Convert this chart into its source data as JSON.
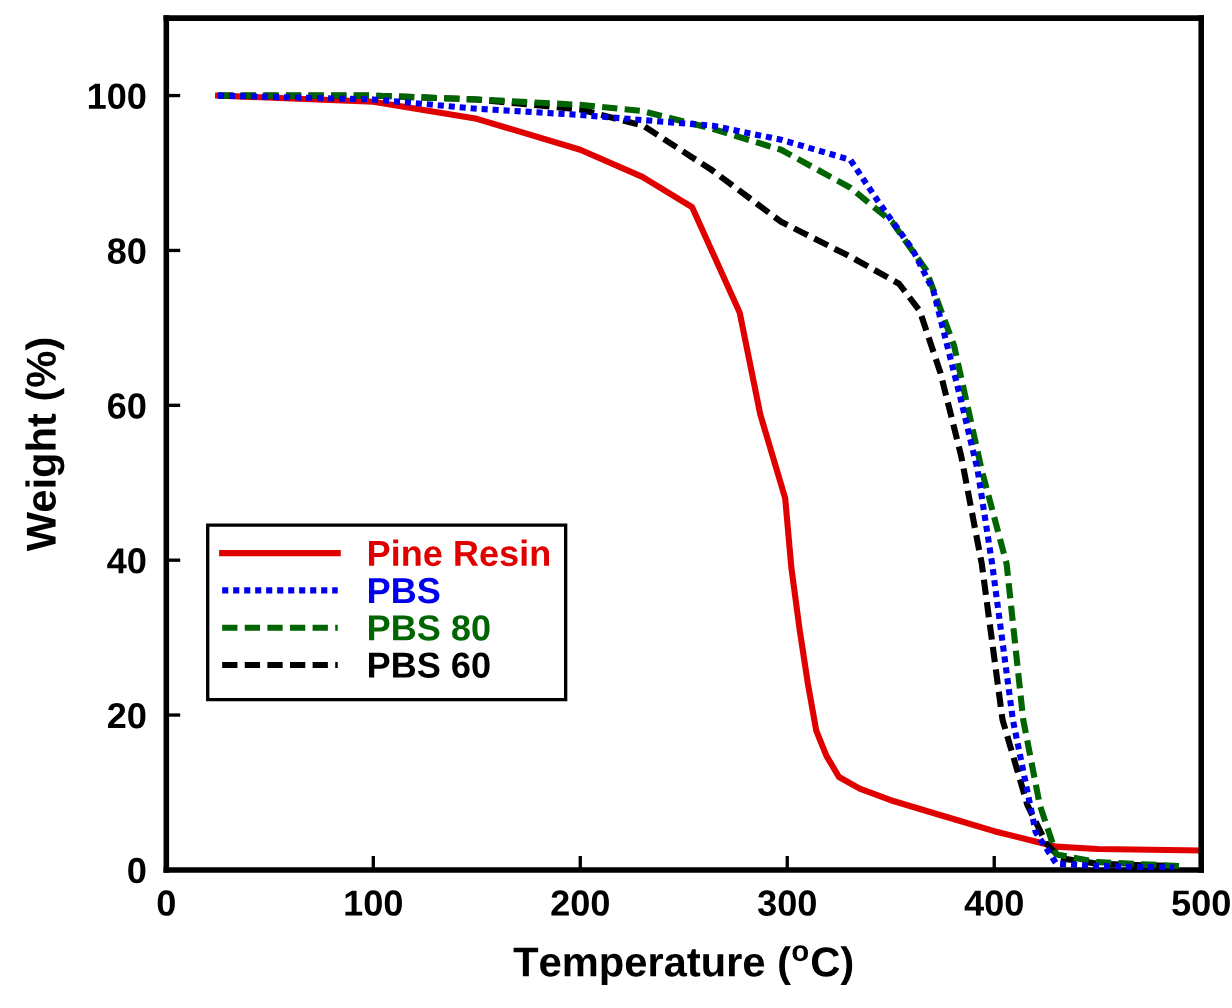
{
  "chart_data": {
    "type": "line",
    "xlabel": "Temperature ($^{o}$C)",
    "ylabel": "Weight (%)",
    "xlim": [
      0,
      500
    ],
    "xticks": [
      0,
      100,
      200,
      300,
      400,
      500
    ],
    "ylim": [
      0,
      110
    ],
    "yticks": [
      0,
      20,
      40,
      60,
      80,
      100
    ],
    "grid": false,
    "legend": "bottom left",
    "marker": "none",
    "series": [
      {
        "name": "Pine Resin",
        "color": "#e00000",
        "line_style": "solid",
        "x": [
          25,
          100,
          150,
          200,
          230,
          254,
          277,
          287,
          299,
          302,
          306,
          310,
          314,
          319,
          325,
          335,
          350,
          375,
          400,
          430,
          450,
          500
        ],
        "values": [
          100,
          99.2,
          97,
          93,
          89.5,
          85.6,
          72,
          58.8,
          48,
          39,
          31,
          24,
          18,
          14.7,
          12,
          10.5,
          9,
          7,
          5,
          3,
          2.7,
          2.5
        ]
      },
      {
        "name": "PBS",
        "color": "#0000ee",
        "line_style": "dotted",
        "x": [
          25,
          100,
          150,
          200,
          264,
          297,
          330.5,
          344,
          360.6,
          370.6,
          384,
          392,
          399,
          409,
          420,
          430,
          450,
          487
        ],
        "values": [
          100,
          99.5,
          98.3,
          97.5,
          96.1,
          94.3,
          91.7,
          86.3,
          80.1,
          74.8,
          60.6,
          51.6,
          39.5,
          19.4,
          4.9,
          0.8,
          0.5,
          0.3
        ]
      },
      {
        "name": "PBS 80",
        "color": "#006400",
        "line_style": "dashed",
        "x": [
          25,
          100,
          150,
          200,
          230,
          264,
          297,
          330.5,
          350.6,
          367,
          380.6,
          394,
          406,
          414,
          422,
          430,
          450,
          490
        ],
        "values": [
          100,
          100,
          99.5,
          98.8,
          98,
          95.7,
          93,
          88.1,
          83.7,
          77.5,
          67.7,
          51.6,
          39.5,
          19.4,
          8.4,
          2,
          1,
          0.5
        ]
      },
      {
        "name": "PBS 60",
        "color": "#000000",
        "line_style": "dashed",
        "x": [
          25,
          100,
          150,
          200,
          230.5,
          264,
          297,
          330.5,
          354,
          364,
          374,
          384,
          394,
          404,
          416,
          425,
          432,
          450,
          485
        ],
        "values": [
          100,
          100,
          99.5,
          98.2,
          96.1,
          90.3,
          83.7,
          79.2,
          75.7,
          72.2,
          64.2,
          53.5,
          39.5,
          19.4,
          8.4,
          3.5,
          1.5,
          0.8,
          0.5
        ]
      }
    ]
  }
}
